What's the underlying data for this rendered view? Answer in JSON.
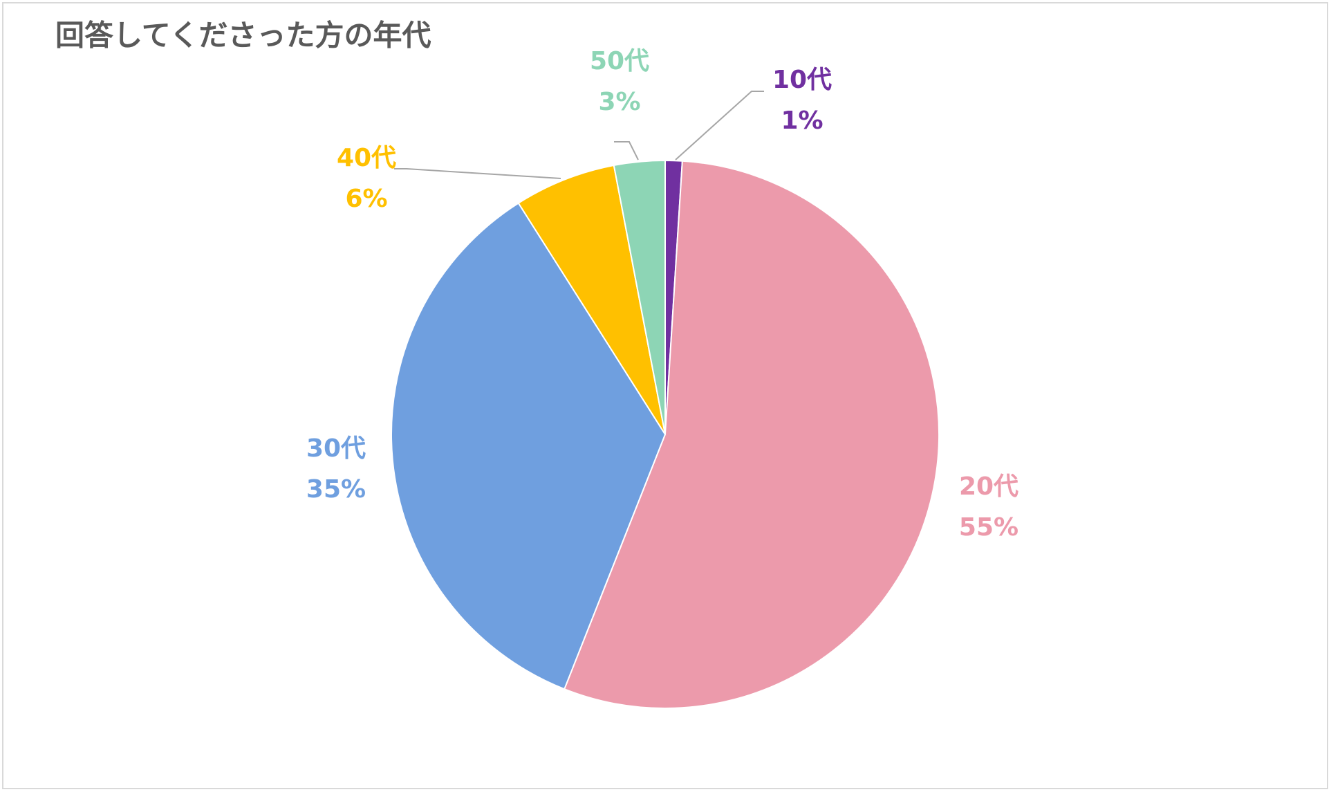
{
  "chart_data": {
    "type": "pie",
    "title": "回答してくださった方の年代",
    "categories": [
      "10代",
      "20代",
      "30代",
      "40代",
      "50代"
    ],
    "values": [
      1,
      55,
      35,
      6,
      3
    ],
    "value_labels": [
      "1%",
      "55%",
      "35%",
      "6%",
      "3%"
    ],
    "colors": [
      "#7030a0",
      "#ec9aab",
      "#6f9fdf",
      "#ffc000",
      "#8dd5b5"
    ]
  }
}
